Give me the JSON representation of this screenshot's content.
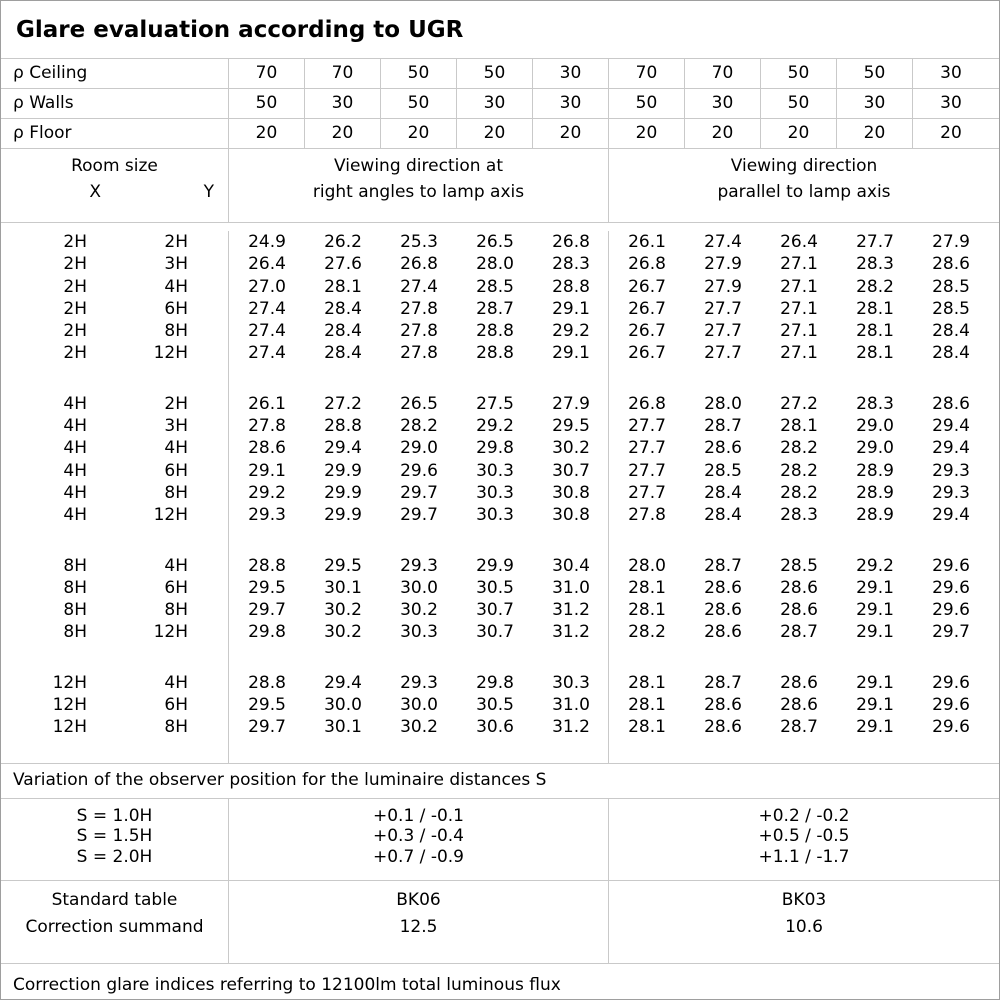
{
  "title": "Glare evaluation according to UGR",
  "reflectance": {
    "rows": [
      {
        "label": "ρ Ceiling",
        "values": [
          "70",
          "70",
          "50",
          "50",
          "30",
          "70",
          "70",
          "50",
          "50",
          "30"
        ]
      },
      {
        "label": "ρ Walls",
        "values": [
          "50",
          "30",
          "50",
          "30",
          "30",
          "50",
          "30",
          "50",
          "30",
          "30"
        ]
      },
      {
        "label": "ρ Floor",
        "values": [
          "20",
          "20",
          "20",
          "20",
          "20",
          "20",
          "20",
          "20",
          "20",
          "20"
        ]
      }
    ]
  },
  "header": {
    "room_size": "Room size",
    "x": "X",
    "y": "Y",
    "group_right_angles": "Viewing direction at\nright angles to lamp axis",
    "group_parallel": "Viewing direction\nparallel to lamp axis"
  },
  "ugr": {
    "groups": [
      {
        "rows": [
          {
            "x": "2H",
            "y": "2H",
            "right_angles": [
              "24.9",
              "26.2",
              "25.3",
              "26.5",
              "26.8"
            ],
            "parallel": [
              "26.1",
              "27.4",
              "26.4",
              "27.7",
              "27.9"
            ]
          },
          {
            "x": "2H",
            "y": "3H",
            "right_angles": [
              "26.4",
              "27.6",
              "26.8",
              "28.0",
              "28.3"
            ],
            "parallel": [
              "26.8",
              "27.9",
              "27.1",
              "28.3",
              "28.6"
            ]
          },
          {
            "x": "2H",
            "y": "4H",
            "right_angles": [
              "27.0",
              "28.1",
              "27.4",
              "28.5",
              "28.8"
            ],
            "parallel": [
              "26.7",
              "27.9",
              "27.1",
              "28.2",
              "28.5"
            ]
          },
          {
            "x": "2H",
            "y": "6H",
            "right_angles": [
              "27.4",
              "28.4",
              "27.8",
              "28.7",
              "29.1"
            ],
            "parallel": [
              "26.7",
              "27.7",
              "27.1",
              "28.1",
              "28.5"
            ]
          },
          {
            "x": "2H",
            "y": "8H",
            "right_angles": [
              "27.4",
              "28.4",
              "27.8",
              "28.8",
              "29.2"
            ],
            "parallel": [
              "26.7",
              "27.7",
              "27.1",
              "28.1",
              "28.4"
            ]
          },
          {
            "x": "2H",
            "y": "12H",
            "right_angles": [
              "27.4",
              "28.4",
              "27.8",
              "28.8",
              "29.1"
            ],
            "parallel": [
              "26.7",
              "27.7",
              "27.1",
              "28.1",
              "28.4"
            ]
          }
        ]
      },
      {
        "rows": [
          {
            "x": "4H",
            "y": "2H",
            "right_angles": [
              "26.1",
              "27.2",
              "26.5",
              "27.5",
              "27.9"
            ],
            "parallel": [
              "26.8",
              "28.0",
              "27.2",
              "28.3",
              "28.6"
            ]
          },
          {
            "x": "4H",
            "y": "3H",
            "right_angles": [
              "27.8",
              "28.8",
              "28.2",
              "29.2",
              "29.5"
            ],
            "parallel": [
              "27.7",
              "28.7",
              "28.1",
              "29.0",
              "29.4"
            ]
          },
          {
            "x": "4H",
            "y": "4H",
            "right_angles": [
              "28.6",
              "29.4",
              "29.0",
              "29.8",
              "30.2"
            ],
            "parallel": [
              "27.7",
              "28.6",
              "28.2",
              "29.0",
              "29.4"
            ]
          },
          {
            "x": "4H",
            "y": "6H",
            "right_angles": [
              "29.1",
              "29.9",
              "29.6",
              "30.3",
              "30.7"
            ],
            "parallel": [
              "27.7",
              "28.5",
              "28.2",
              "28.9",
              "29.3"
            ]
          },
          {
            "x": "4H",
            "y": "8H",
            "right_angles": [
              "29.2",
              "29.9",
              "29.7",
              "30.3",
              "30.8"
            ],
            "parallel": [
              "27.7",
              "28.4",
              "28.2",
              "28.9",
              "29.3"
            ]
          },
          {
            "x": "4H",
            "y": "12H",
            "right_angles": [
              "29.3",
              "29.9",
              "29.7",
              "30.3",
              "30.8"
            ],
            "parallel": [
              "27.8",
              "28.4",
              "28.3",
              "28.9",
              "29.4"
            ]
          }
        ]
      },
      {
        "rows": [
          {
            "x": "8H",
            "y": "4H",
            "right_angles": [
              "28.8",
              "29.5",
              "29.3",
              "29.9",
              "30.4"
            ],
            "parallel": [
              "28.0",
              "28.7",
              "28.5",
              "29.2",
              "29.6"
            ]
          },
          {
            "x": "8H",
            "y": "6H",
            "right_angles": [
              "29.5",
              "30.1",
              "30.0",
              "30.5",
              "31.0"
            ],
            "parallel": [
              "28.1",
              "28.6",
              "28.6",
              "29.1",
              "29.6"
            ]
          },
          {
            "x": "8H",
            "y": "8H",
            "right_angles": [
              "29.7",
              "30.2",
              "30.2",
              "30.7",
              "31.2"
            ],
            "parallel": [
              "28.1",
              "28.6",
              "28.6",
              "29.1",
              "29.6"
            ]
          },
          {
            "x": "8H",
            "y": "12H",
            "right_angles": [
              "29.8",
              "30.2",
              "30.3",
              "30.7",
              "31.2"
            ],
            "parallel": [
              "28.2",
              "28.6",
              "28.7",
              "29.1",
              "29.7"
            ]
          }
        ]
      },
      {
        "rows": [
          {
            "x": "12H",
            "y": "4H",
            "right_angles": [
              "28.8",
              "29.4",
              "29.3",
              "29.8",
              "30.3"
            ],
            "parallel": [
              "28.1",
              "28.7",
              "28.6",
              "29.1",
              "29.6"
            ]
          },
          {
            "x": "12H",
            "y": "6H",
            "right_angles": [
              "29.5",
              "30.0",
              "30.0",
              "30.5",
              "31.0"
            ],
            "parallel": [
              "28.1",
              "28.6",
              "28.6",
              "29.1",
              "29.6"
            ]
          },
          {
            "x": "12H",
            "y": "8H",
            "right_angles": [
              "29.7",
              "30.1",
              "30.2",
              "30.6",
              "31.2"
            ],
            "parallel": [
              "28.1",
              "28.6",
              "28.7",
              "29.1",
              "29.6"
            ]
          }
        ]
      }
    ]
  },
  "variation": {
    "caption": "Variation of the observer position for the luminaire distances S",
    "rows": [
      {
        "label": "S = 1.0H",
        "right_angles": "+0.1 / -0.1",
        "parallel": "+0.2 / -0.2"
      },
      {
        "label": "S = 1.5H",
        "right_angles": "+0.3 / -0.4",
        "parallel": "+0.5 / -0.5"
      },
      {
        "label": "S = 2.0H",
        "right_angles": "+0.7 / -0.9",
        "parallel": "+1.1 / -1.7"
      }
    ]
  },
  "standard": {
    "row1": {
      "label": "Standard table",
      "right_angles": "BK06",
      "parallel": "BK03"
    },
    "row2": {
      "label": "Correction summand",
      "right_angles": "12.5",
      "parallel": "10.6"
    }
  },
  "footer": "Correction glare indices referring to 12100lm total luminous flux",
  "colors": {
    "grid_line": "#c9c9c9",
    "outer_border": "#9e9e9e",
    "text": "#000000",
    "background": "#ffffff"
  }
}
